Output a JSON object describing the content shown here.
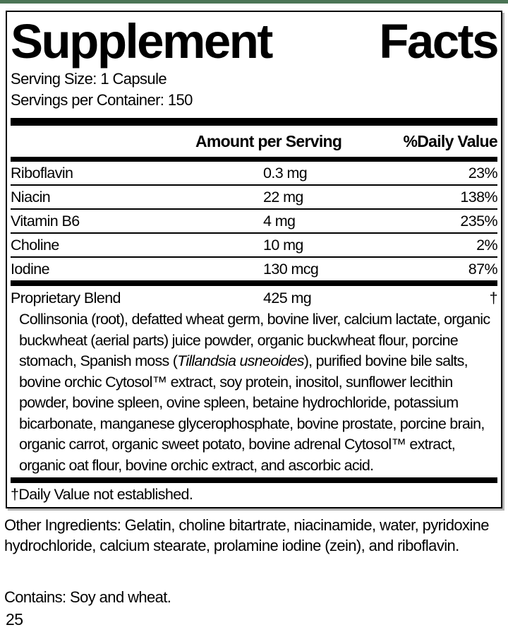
{
  "colors": {
    "accent_green": "#4b7455",
    "text": "#000000",
    "panel_shadow": "#b5b5b5"
  },
  "panel": {
    "title_left": "Supplement",
    "title_right": "Facts",
    "serving_size": "Serving Size: 1 Capsule",
    "servings_per_container": "Servings per Container: 150"
  },
  "table": {
    "amount_header": "Amount per Serving",
    "dv_header": "%Daily Value",
    "rows": [
      {
        "name": "Riboflavin",
        "amount": "0.3 mg",
        "dv": "23%"
      },
      {
        "name": "Niacin",
        "amount": "22 mg",
        "dv": "138%"
      },
      {
        "name": "Vitamin B6",
        "amount": "4 mg",
        "dv": "235%"
      },
      {
        "name": "Choline",
        "amount": "10 mg",
        "dv": "2%"
      },
      {
        "name": "Iodine",
        "amount": "130 mcg",
        "dv": "87%"
      }
    ],
    "blend": {
      "name": "Proprietary Blend",
      "amount": "425 mg",
      "dv": "†",
      "desc_part1": "Collinsonia (root), defatted wheat germ, bovine liver, calcium lactate, organic buckwheat (aerial parts) juice powder, organic buckwheat flour, porcine stomach, Spanish moss (",
      "desc_italic": "Tillandsia usneoides",
      "desc_part2": "), purified bovine bile salts, bovine orchic Cytosol™ extract, soy protein, inositol, sunflower lecithin powder, bovine spleen, ovine spleen, betaine hydrochloride, potassium bicarbonate, manganese glycerophosphate, bovine prostate, porcine brain, organic carrot, organic sweet potato, bovine adrenal Cytosol™ extract, organic oat flour, bovine orchic extract, and ascorbic acid."
    },
    "footnote": "†Daily Value not established."
  },
  "other_ingredients": "Other Ingredients: Gelatin, choline bitartrate, niacinamide, water, pyridoxine hydrochloride, calcium stearate, prolamine iodine (zein), and riboflavin.",
  "contains": "Contains: Soy and wheat.",
  "page_number": "25"
}
